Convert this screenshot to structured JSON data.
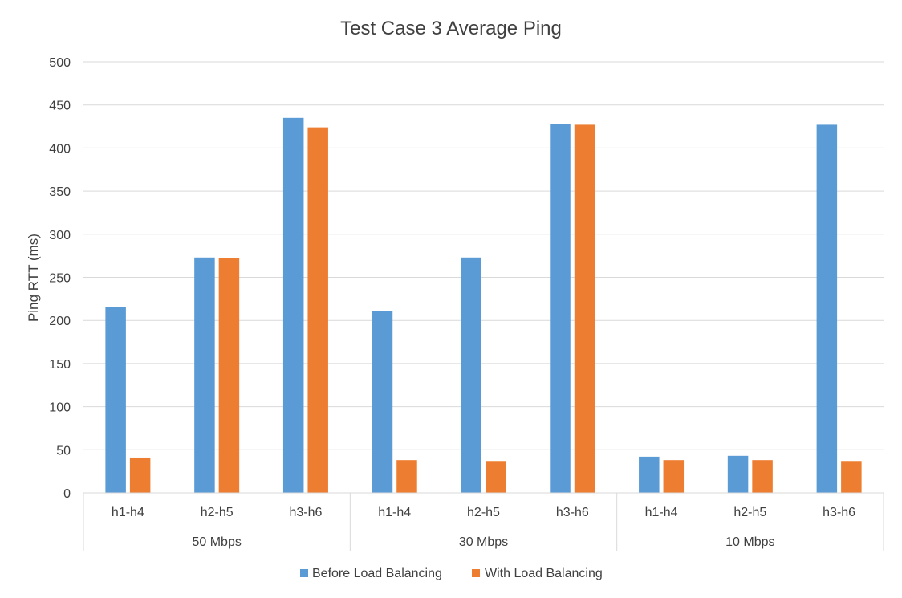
{
  "chart_data": {
    "type": "bar",
    "title": "Test Case 3 Average Ping",
    "ylabel": "Ping RTT (ms)",
    "xlabel": "",
    "ylim": [
      0,
      500
    ],
    "yticks": [
      0,
      50,
      100,
      150,
      200,
      250,
      300,
      350,
      400,
      450,
      500
    ],
    "grid": true,
    "legend_position": "bottom",
    "groups": [
      {
        "label": "50 Mbps",
        "categories": [
          "h1-h4",
          "h2-h5",
          "h3-h6"
        ]
      },
      {
        "label": "30 Mbps",
        "categories": [
          "h1-h4",
          "h2-h5",
          "h3-h6"
        ]
      },
      {
        "label": "10 Mbps",
        "categories": [
          "h1-h4",
          "h2-h5",
          "h3-h6"
        ]
      }
    ],
    "series": [
      {
        "name": "Before Load Balancing",
        "color": "#5b9bd5",
        "values": [
          216,
          273,
          435,
          211,
          273,
          428,
          42,
          43,
          427
        ]
      },
      {
        "name": "With Load Balancing",
        "color": "#ed7d31",
        "values": [
          41,
          272,
          424,
          38,
          37,
          427,
          38,
          38,
          37
        ]
      }
    ]
  }
}
